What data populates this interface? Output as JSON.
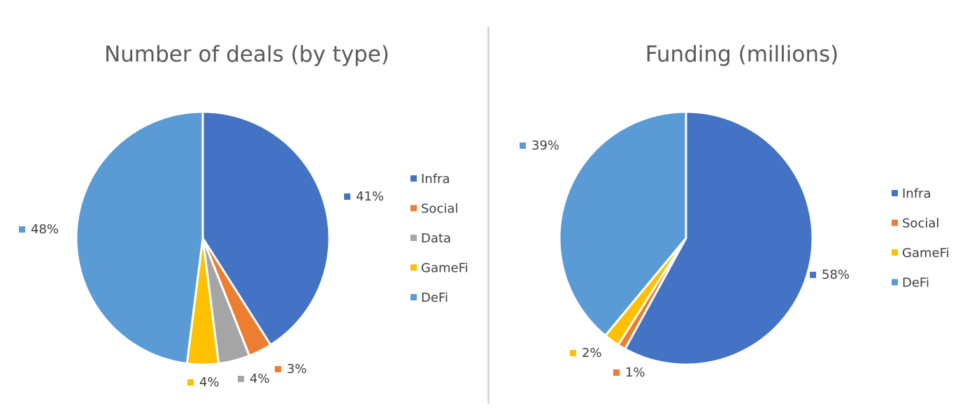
{
  "chart_data": [
    {
      "type": "pie",
      "title": "Number of deals (by type)",
      "categories": [
        "Infra",
        "Social",
        "Data",
        "GameFi",
        "DeFi"
      ],
      "values": [
        41,
        3,
        4,
        4,
        48
      ],
      "labels": [
        "41%",
        "3%",
        "4%",
        "4%",
        "48%"
      ],
      "legend": [
        "Infra",
        "Social",
        "Data",
        "GameFi",
        "DeFi"
      ],
      "colors": [
        "#4472C4",
        "#ED7D31",
        "#A5A5A5",
        "#FFC000",
        "#5B9BD5"
      ],
      "legend_position": "right"
    },
    {
      "type": "pie",
      "title": "Funding (millions)",
      "categories": [
        "Infra",
        "Social",
        "GameFi",
        "DeFi"
      ],
      "values": [
        58,
        1,
        2,
        39
      ],
      "labels": [
        "58%",
        "1%",
        "2%",
        "39%"
      ],
      "legend": [
        "Infra",
        "Social",
        "GameFi",
        "DeFi"
      ],
      "colors": [
        "#4472C4",
        "#ED7D31",
        "#FFC000",
        "#5B9BD5"
      ],
      "legend_position": "right"
    }
  ]
}
